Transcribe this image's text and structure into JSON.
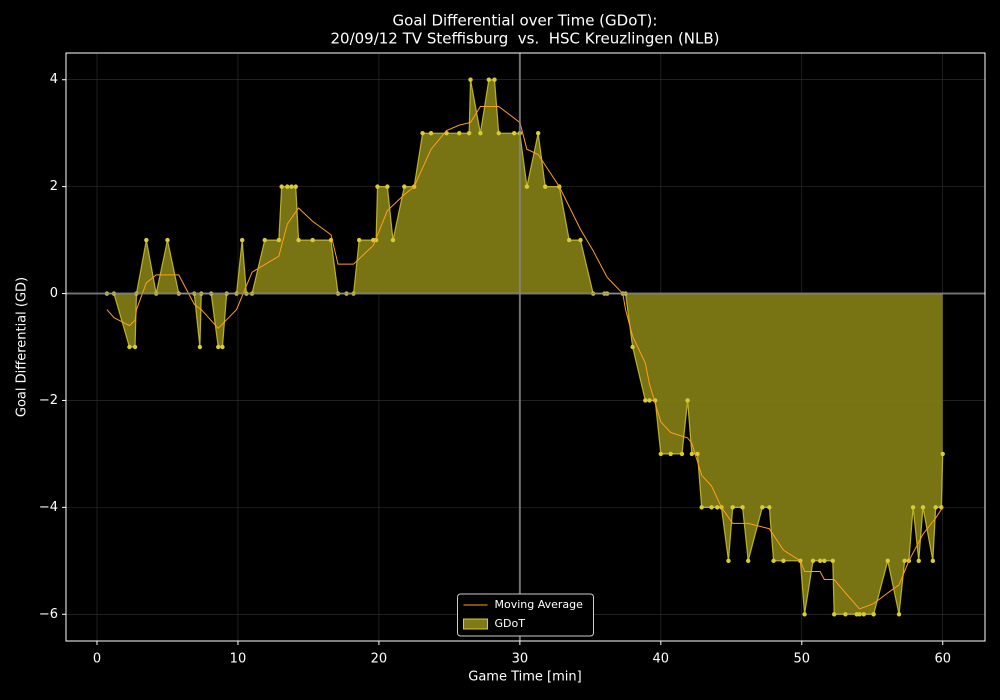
{
  "chart_data": {
    "type": "area",
    "title": [
      "Goal Differential over Time (GDoT):",
      "20/09/12 TV Steffisburg  vs.  HSC Kreuzlingen (NLB)"
    ],
    "x_label": "Game Time [min]",
    "y_label": "Goal Differential (GD)",
    "xlim": [
      -2.2,
      63.0
    ],
    "ylim": [
      -6.5,
      4.5
    ],
    "xticks": [
      0,
      10,
      20,
      30,
      40,
      50,
      60
    ],
    "yticks": [
      {
        "value": -6,
        "label": "−6"
      },
      {
        "value": -4,
        "label": "−4"
      },
      {
        "value": -2,
        "label": "−2"
      },
      0,
      2,
      4
    ],
    "grid": true,
    "vlines": [
      30
    ],
    "hlines": [
      0
    ],
    "legend": "lower center",
    "series": [
      {
        "name": "Moving Average",
        "kind": "line",
        "color": "#ff9f1a",
        "x": [
          0.7,
          1.2,
          2.3,
          2.7,
          2.8,
          3.5,
          4.2,
          5.8,
          6.9,
          7.4,
          8.6,
          9.9,
          11.0,
          12.9,
          13.5,
          14.3,
          15.3,
          16.6,
          17.1,
          18.2,
          19.6,
          20.6,
          21.8,
          22.5,
          23.7,
          24.8,
          25.7,
          26.5,
          27.2,
          28.5,
          30.0,
          30.5,
          31.3,
          31.8,
          32.8,
          34.3,
          35.2,
          36.2,
          37.3,
          37.5,
          38.0,
          38.9,
          39.2,
          40.0,
          40.7,
          41.9,
          42.2,
          42.9,
          43.6,
          44.3,
          45.1,
          46.2,
          47.7,
          48.7,
          49.9,
          50.2,
          51.3,
          51.6,
          52.3,
          53.1,
          54.1,
          55.1,
          56.1,
          56.9,
          57.6,
          58.6,
          59.5,
          60.0
        ],
        "values": [
          -0.3,
          -0.45,
          -0.6,
          -0.5,
          -0.3,
          0.2,
          0.35,
          0.35,
          -0.2,
          -0.3,
          -0.65,
          -0.3,
          0.4,
          0.7,
          1.3,
          1.6,
          1.35,
          1.1,
          0.55,
          0.55,
          0.9,
          1.55,
          1.85,
          2.0,
          2.7,
          3.05,
          3.15,
          3.2,
          3.5,
          3.5,
          3.2,
          2.7,
          2.6,
          2.4,
          2.0,
          1.2,
          0.8,
          0.3,
          0.0,
          -0.3,
          -0.8,
          -1.3,
          -1.7,
          -2.4,
          -2.6,
          -2.7,
          -2.8,
          -3.4,
          -3.6,
          -4.0,
          -4.3,
          -4.3,
          -4.4,
          -4.8,
          -5.0,
          -5.2,
          -5.2,
          -5.35,
          -5.35,
          -5.6,
          -5.9,
          -5.8,
          -5.6,
          -5.45,
          -5.0,
          -4.5,
          -4.2,
          -4.0
        ]
      },
      {
        "name": "GDoT",
        "kind": "area",
        "color": "#7f7a14",
        "edge_color": "#d8cc33",
        "x": [
          0.7,
          1.2,
          2.3,
          2.7,
          2.8,
          3.5,
          4.2,
          5.0,
          5.8,
          6.9,
          7.3,
          7.4,
          8.1,
          8.6,
          8.9,
          9.2,
          9.9,
          10.3,
          10.6,
          11.0,
          11.9,
          12.9,
          13.1,
          13.5,
          13.8,
          14.1,
          14.3,
          15.3,
          16.6,
          17.1,
          17.7,
          18.2,
          18.6,
          19.6,
          19.8,
          19.9,
          20.6,
          21.0,
          21.8,
          22.5,
          23.1,
          23.7,
          24.8,
          25.7,
          26.4,
          26.5,
          27.2,
          27.8,
          28.2,
          28.5,
          29.6,
          30.0,
          30.5,
          31.3,
          31.8,
          32.8,
          33.5,
          34.3,
          35.2,
          36.0,
          36.2,
          37.3,
          37.5,
          38.0,
          38.9,
          39.2,
          39.6,
          40.0,
          40.7,
          41.5,
          41.9,
          42.2,
          42.6,
          42.9,
          43.6,
          44.0,
          44.3,
          44.8,
          45.1,
          45.8,
          46.2,
          47.2,
          47.7,
          48.0,
          48.7,
          49.9,
          50.2,
          50.8,
          51.3,
          51.6,
          52.2,
          52.3,
          53.1,
          53.9,
          54.1,
          54.4,
          55.1,
          56.1,
          56.9,
          57.3,
          57.6,
          57.9,
          58.3,
          58.6,
          59.3,
          59.5,
          59.9,
          60.0
        ],
        "values": [
          0,
          0,
          -1,
          -1,
          0,
          1,
          0,
          1,
          0,
          0,
          -1,
          0,
          0,
          -1,
          -1,
          0,
          0,
          1,
          0,
          0,
          1,
          1,
          2,
          2,
          2,
          2,
          1,
          1,
          1,
          0,
          0,
          0,
          1,
          1,
          1,
          2,
          2,
          1,
          2,
          2,
          3,
          3,
          3,
          3,
          3,
          4,
          3,
          4,
          4,
          3,
          3,
          3,
          2,
          3,
          2,
          2,
          1,
          1,
          0,
          0,
          0,
          0,
          0,
          -1,
          -2,
          -2,
          -2,
          -3,
          -3,
          -3,
          -2,
          -3,
          -3,
          -4,
          -4,
          -4,
          -4,
          -5,
          -4,
          -4,
          -5,
          -4,
          -4,
          -5,
          -5,
          -5,
          -6,
          -5,
          -5,
          -5,
          -5,
          -6,
          -6,
          -6,
          -6,
          -6,
          -6,
          -5,
          -6,
          -5,
          -5,
          -4,
          -5,
          -4,
          -5,
          -4,
          -4,
          -3
        ]
      }
    ]
  }
}
